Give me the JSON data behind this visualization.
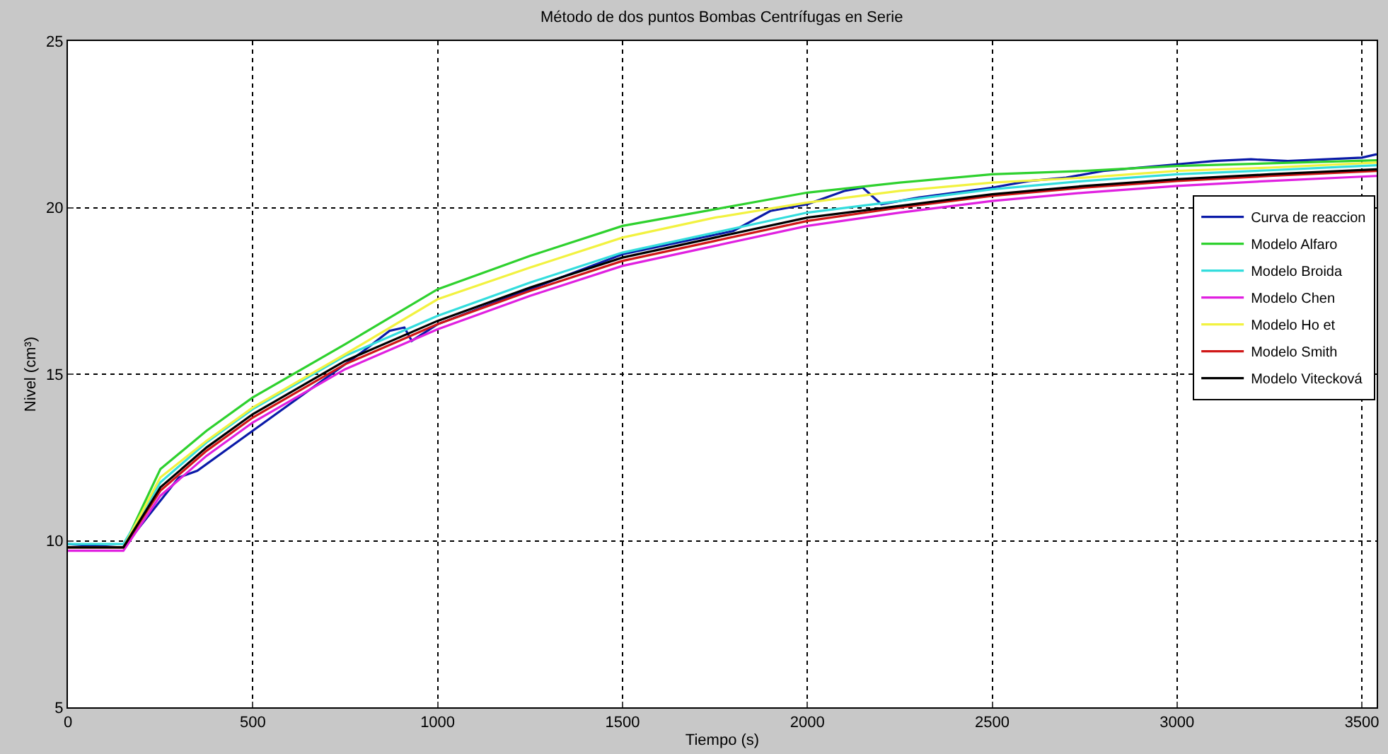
{
  "chart_data": {
    "type": "line",
    "title": "Método de dos puntos Bombas Centrífugas en Serie",
    "xlabel": "Tiempo (s)",
    "ylabel": "Nivel (cm³)",
    "xlim": [
      0,
      3540
    ],
    "xticks": [
      0,
      500,
      1000,
      1500,
      2000,
      2500,
      3000,
      3500
    ],
    "ylim": [
      5,
      25
    ],
    "yticks": [
      5,
      10,
      15,
      20,
      25
    ],
    "grid": true,
    "legend": "right",
    "line_style": "solid",
    "marker": "none",
    "series": [
      {
        "name": "Curva de reaccion",
        "color": "#0a1aa8",
        "x": [
          0,
          140,
          150,
          300,
          350,
          500,
          800,
          870,
          910,
          930,
          1000,
          1500,
          1800,
          1900,
          2000,
          2100,
          2150,
          2200,
          2300,
          2500,
          2600,
          2700,
          2800,
          3000,
          3100,
          3200,
          3300,
          3500,
          3540
        ],
        "values": [
          9.9,
          9.8,
          9.8,
          11.9,
          12.1,
          13.3,
          15.7,
          16.3,
          16.4,
          16.0,
          16.5,
          18.6,
          19.3,
          19.9,
          20.1,
          20.5,
          20.6,
          20.1,
          20.3,
          20.6,
          20.8,
          20.9,
          21.1,
          21.3,
          21.4,
          21.45,
          21.4,
          21.5,
          21.6
        ]
      },
      {
        "name": "Modelo Alfaro",
        "color": "#2ed12e",
        "x": [
          0,
          150,
          250,
          375,
          500,
          750,
          1000,
          1250,
          1500,
          1750,
          2000,
          2250,
          2500,
          2750,
          3000,
          3250,
          3540
        ],
        "values": [
          9.8,
          9.8,
          12.15,
          13.3,
          14.3,
          15.9,
          17.55,
          18.55,
          19.45,
          19.95,
          20.45,
          20.75,
          21.0,
          21.1,
          21.25,
          21.33,
          21.42
        ]
      },
      {
        "name": "Modelo Broida",
        "color": "#33dddd",
        "x": [
          0,
          150,
          250,
          375,
          500,
          750,
          1000,
          1250,
          1500,
          1750,
          2000,
          2250,
          2500,
          2750,
          3000,
          3250,
          3540
        ],
        "values": [
          9.9,
          9.9,
          11.75,
          12.95,
          13.95,
          15.55,
          16.75,
          17.75,
          18.65,
          19.25,
          19.85,
          20.2,
          20.55,
          20.8,
          21.0,
          21.12,
          21.27
        ]
      },
      {
        "name": "Modelo Chen",
        "color": "#e020e0",
        "x": [
          0,
          150,
          250,
          375,
          500,
          750,
          1000,
          1250,
          1500,
          1750,
          2000,
          2250,
          2500,
          2750,
          3000,
          3250,
          3540
        ],
        "values": [
          9.7,
          9.7,
          11.35,
          12.55,
          13.55,
          15.15,
          16.35,
          17.35,
          18.25,
          18.85,
          19.45,
          19.85,
          20.2,
          20.45,
          20.65,
          20.8,
          20.95
        ]
      },
      {
        "name": "Modelo Ho et",
        "color": "#f2f240",
        "x": [
          0,
          150,
          250,
          375,
          500,
          750,
          1000,
          1250,
          1500,
          1750,
          2000,
          2250,
          2500,
          2750,
          3000,
          3250,
          3540
        ],
        "values": [
          9.8,
          9.8,
          11.9,
          13.0,
          14.0,
          15.6,
          17.25,
          18.2,
          19.1,
          19.7,
          20.15,
          20.5,
          20.75,
          20.9,
          21.1,
          21.2,
          21.35
        ]
      },
      {
        "name": "Modelo Smith",
        "color": "#d01818",
        "x": [
          0,
          150,
          250,
          375,
          500,
          750,
          1000,
          1250,
          1500,
          1750,
          2000,
          2250,
          2500,
          2750,
          3000,
          3250,
          3540
        ],
        "values": [
          9.8,
          9.8,
          11.5,
          12.7,
          13.7,
          15.3,
          16.5,
          17.5,
          18.4,
          19.0,
          19.6,
          20.0,
          20.35,
          20.6,
          20.8,
          20.95,
          21.1
        ]
      },
      {
        "name": "Modelo Vitecková",
        "color": "#000000",
        "x": [
          0,
          150,
          250,
          375,
          500,
          750,
          1000,
          1250,
          1500,
          1750,
          2000,
          2250,
          2500,
          2750,
          3000,
          3250,
          3540
        ],
        "values": [
          9.8,
          9.8,
          11.6,
          12.8,
          13.8,
          15.4,
          16.6,
          17.6,
          18.5,
          19.1,
          19.7,
          20.05,
          20.4,
          20.65,
          20.85,
          21.0,
          21.15
        ]
      }
    ]
  }
}
